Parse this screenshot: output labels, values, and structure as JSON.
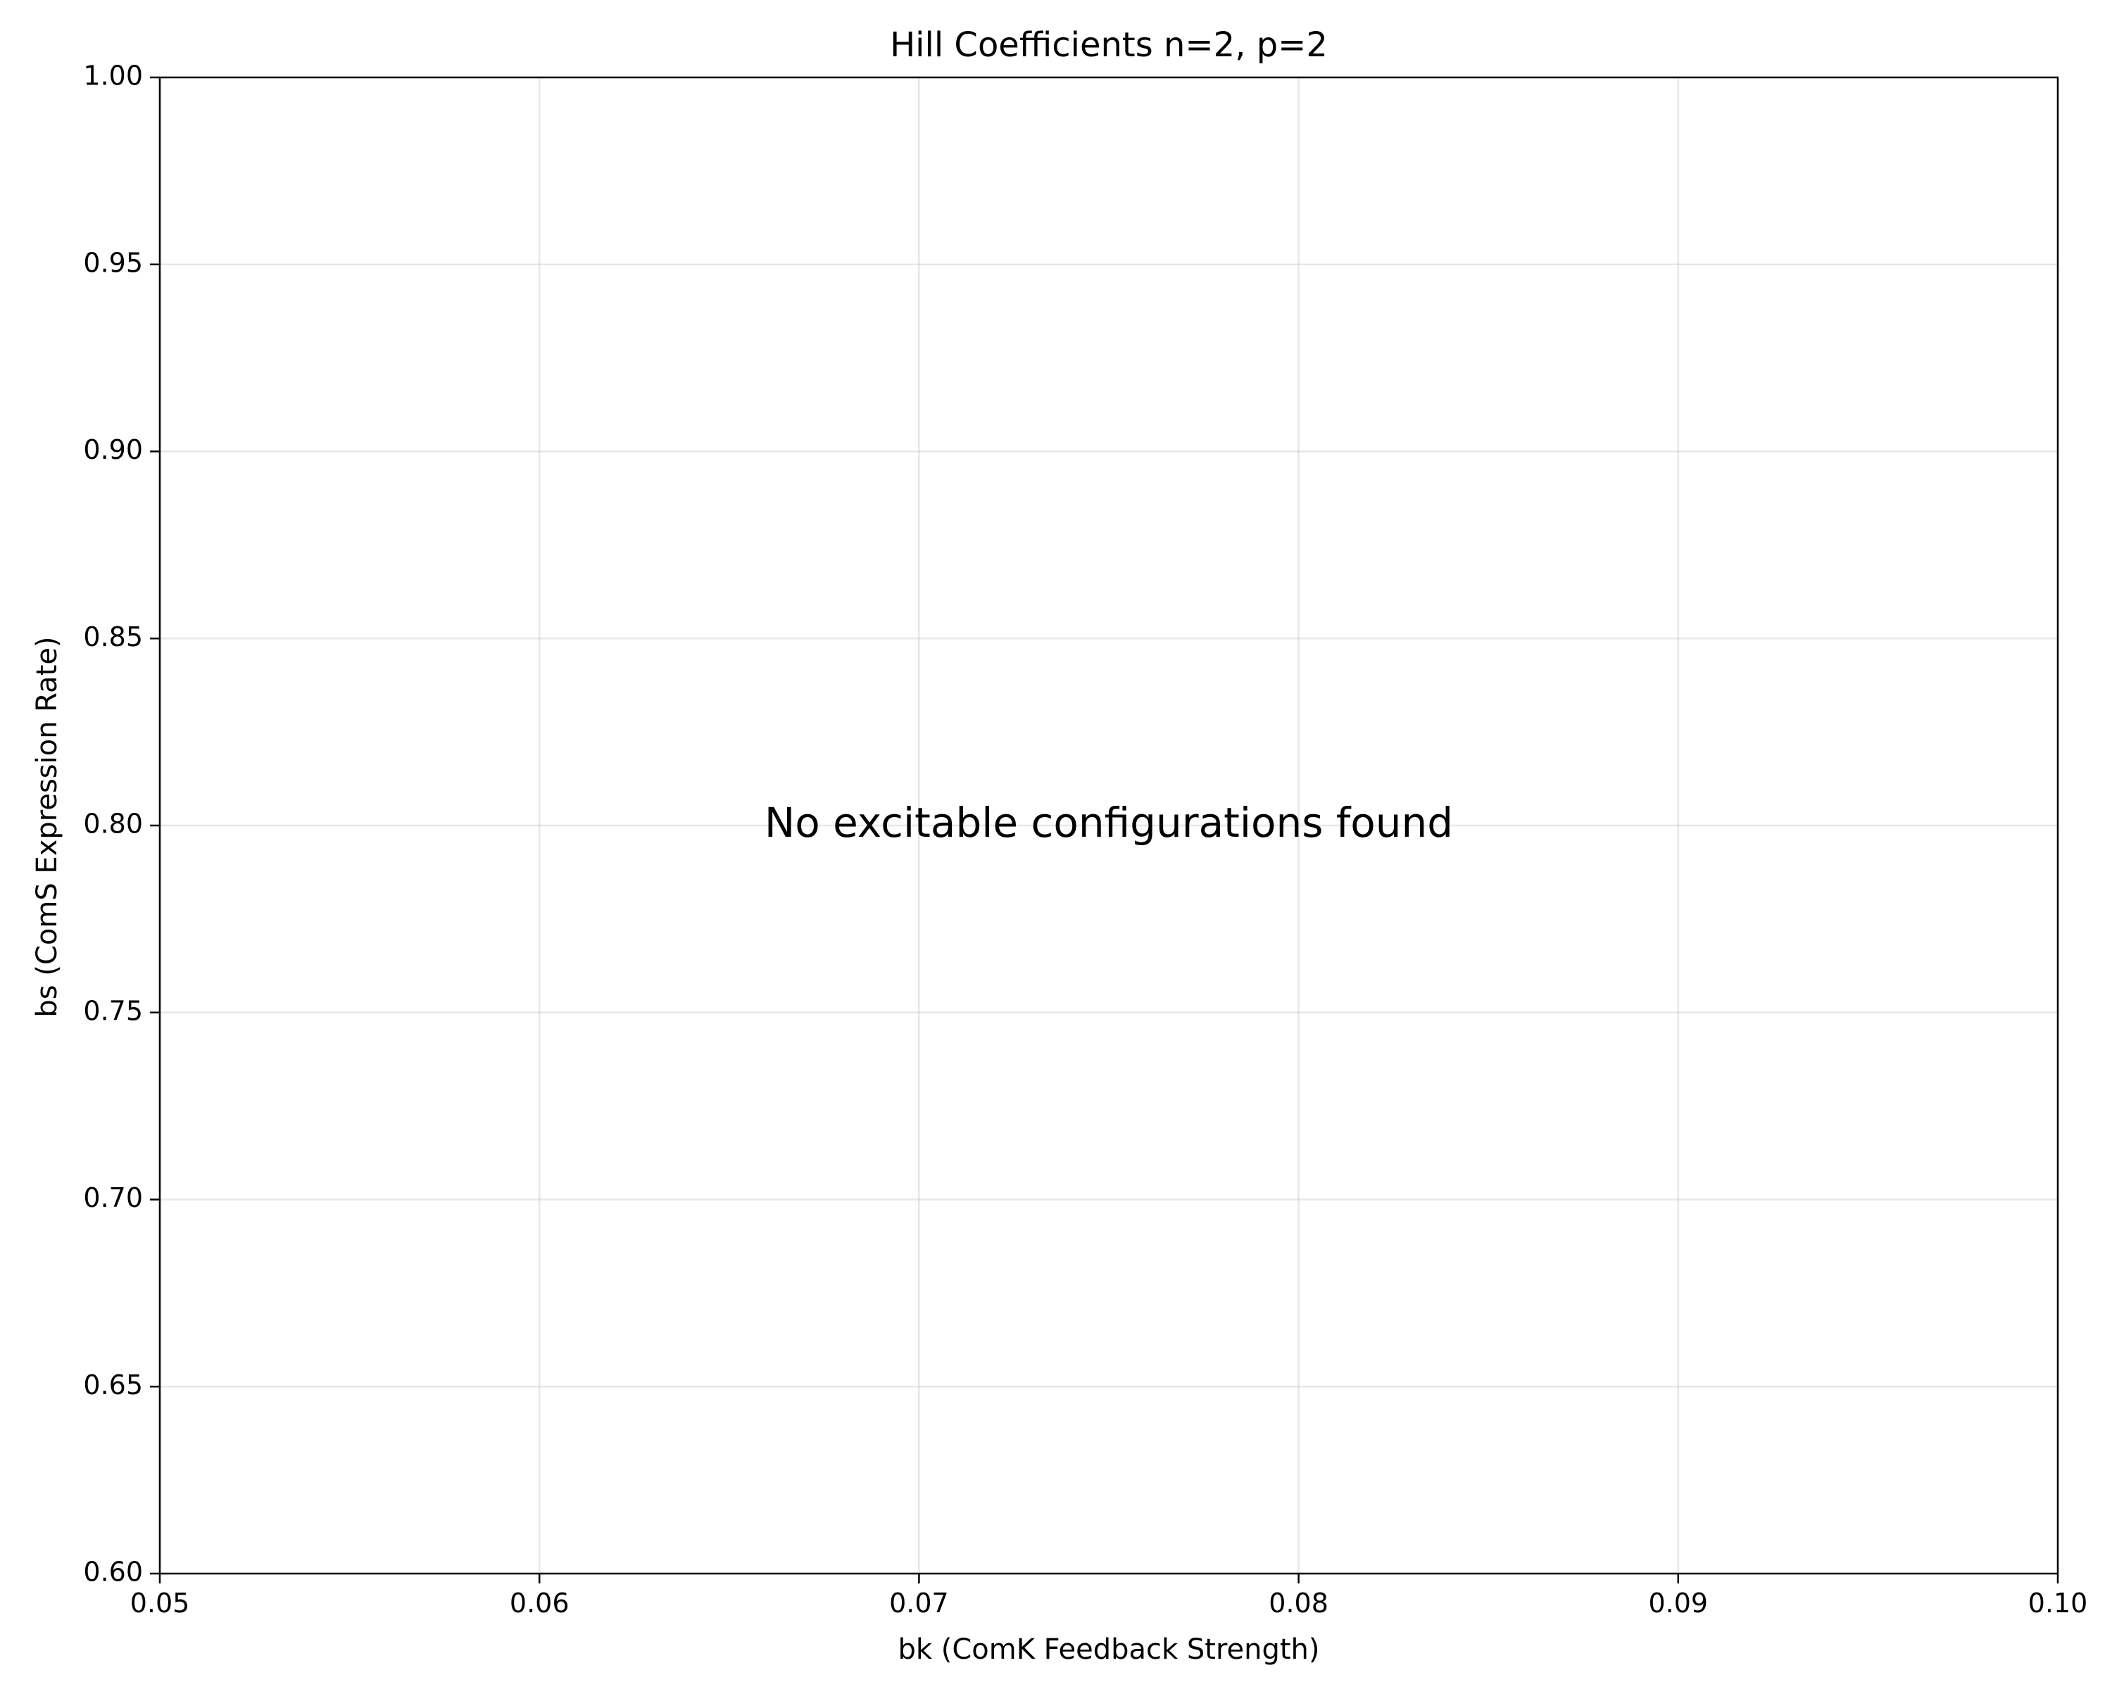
{
  "chart_data": {
    "type": "scatter",
    "title": "Hill Coefficients n=2, p=2",
    "xlabel": "bk (ComK Feedback Strength)",
    "ylabel": "bs (ComS Expression Rate)",
    "xlim": [
      0.05,
      0.1
    ],
    "ylim": [
      0.6,
      1.0
    ],
    "xticks": [
      0.05,
      0.06,
      0.07,
      0.08,
      0.09,
      0.1
    ],
    "xtick_labels": [
      "0.05",
      "0.06",
      "0.07",
      "0.08",
      "0.09",
      "0.10"
    ],
    "yticks": [
      0.6,
      0.65,
      0.7,
      0.75,
      0.8,
      0.85,
      0.9,
      0.95,
      1.0
    ],
    "ytick_labels": [
      "0.60",
      "0.65",
      "0.70",
      "0.75",
      "0.80",
      "0.85",
      "0.90",
      "0.95",
      "1.00"
    ],
    "grid": true,
    "series": [],
    "annotation": {
      "text": "No excitable configurations found",
      "x": 0.075,
      "y": 0.8
    }
  }
}
